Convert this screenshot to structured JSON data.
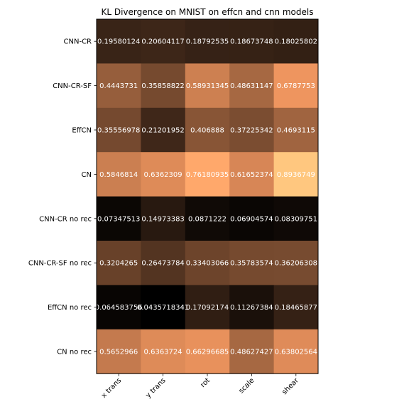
{
  "chart_data": {
    "type": "heatmap",
    "title": "KL Divergence on MNIST on effcn and cnn models",
    "colormap": "copper",
    "value_range": [
      0.0435718341,
      0.8936749
    ],
    "x_categories": [
      "x trans",
      "y trans",
      "rot",
      "scale",
      "shear"
    ],
    "y_categories": [
      "CNN-CR",
      "CNN-CR-SF",
      "EffCN",
      "CN",
      "CNN-CR no rec",
      "CNN-CR-SF no rec",
      "EffCN no rec",
      "CN  no rec"
    ],
    "values": [
      [
        0.19580124,
        0.20604117,
        0.18792535,
        0.18673748,
        0.18025802
      ],
      [
        0.4443731,
        0.35858822,
        0.58931345,
        0.48631147,
        0.6787753
      ],
      [
        0.35556978,
        0.21201952,
        0.406888,
        0.37225342,
        0.4693115
      ],
      [
        0.5846814,
        0.6362309,
        0.76180935,
        0.61652374,
        0.8936749
      ],
      [
        0.07347513,
        0.14973383,
        0.0871222,
        0.06904574,
        0.08309751
      ],
      [
        0.3204265,
        0.26473784,
        0.33403066,
        0.35783574,
        0.36206308
      ],
      [
        0.064583756,
        0.0435718341,
        0.17092174,
        0.11267384,
        0.18465877
      ],
      [
        0.5652966,
        0.6363724,
        0.66296685,
        0.48627427,
        0.63802564
      ]
    ],
    "labels": [
      [
        "0.19580124",
        "0.20604117",
        "0.18792535",
        "0.18673748",
        "0.18025802"
      ],
      [
        "0.4443731",
        "0.35858822",
        "0.58931345",
        "0.48631147",
        "0.6787753"
      ],
      [
        "0.35556978",
        "0.21201952",
        "0.406888",
        "0.37225342",
        "0.4693115"
      ],
      [
        "0.5846814",
        "0.6362309",
        "0.76180935",
        "0.61652374",
        "0.8936749"
      ],
      [
        "0.07347513",
        "0.14973383",
        "0.0871222",
        "0.06904574",
        "0.08309751"
      ],
      [
        "0.3204265",
        "0.26473784",
        "0.33403066",
        "0.35783574",
        "0.36206308"
      ],
      [
        "0.064583756",
        "0.0435718341",
        "0.17092174",
        "0.11267384",
        "0.18465877"
      ],
      [
        "0.5652966",
        "0.6363724",
        "0.66296685",
        "0.48627427",
        "0.63802564"
      ]
    ],
    "grid": false,
    "legend": "none"
  }
}
